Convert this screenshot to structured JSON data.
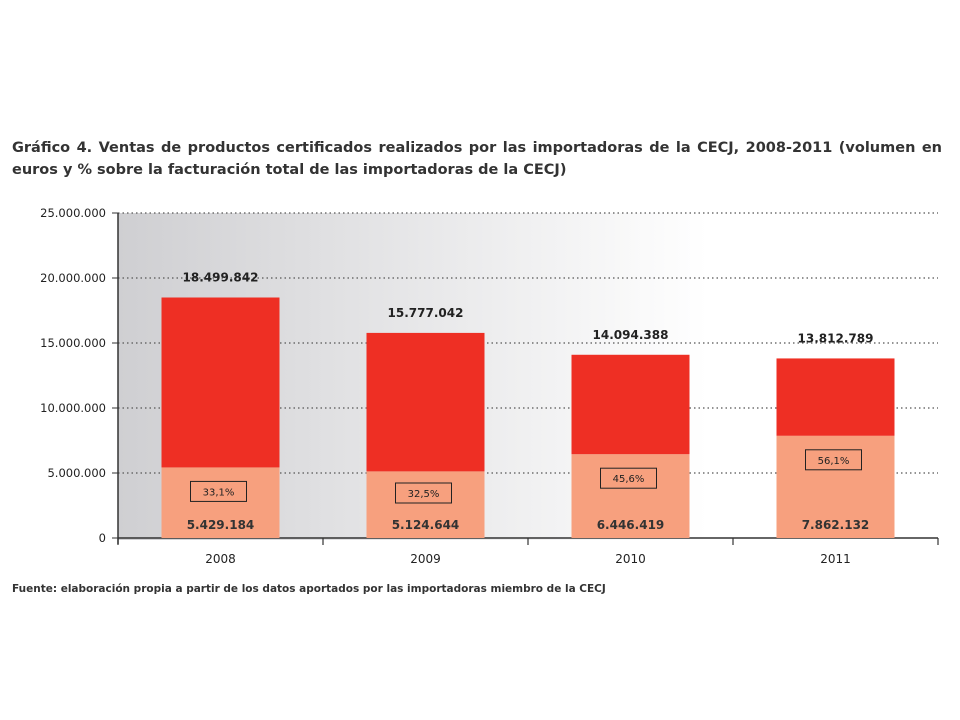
{
  "title": "Gráfico 4. Ventas de productos certificados realizados por las importadoras de la CECJ, 2008-2011 (volumen en euros y % sobre la facturación total de las importadoras de la CECJ)",
  "source": "Fuente: elaboración propia a partir de los datos aportados por las importadoras miembro de la CECJ",
  "colors": {
    "top": "#ee2f24",
    "bottom": "#f7a07e",
    "grid": "#555555"
  },
  "chart_data": {
    "type": "bar",
    "stacked": true,
    "categories": [
      "2008",
      "2009",
      "2010",
      "2011"
    ],
    "series": [
      {
        "values": [
          5429184,
          5124644,
          6446419,
          7862132
        ],
        "labels": [
          "5.429.184",
          "5.124.644",
          "6.446.419",
          "7.862.132"
        ],
        "color": "#f7a07e"
      },
      {
        "values": [
          13070658,
          10652398,
          7647969,
          5950657
        ],
        "color": "#ee2f24"
      }
    ],
    "totals": [
      18499842,
      15777042,
      14094388,
      13812789
    ],
    "total_labels": [
      "18.499.842",
      "15.777.042",
      "14.094.388",
      "13.812.789"
    ],
    "percent_labels": [
      "33,1%",
      "32,5%",
      "45,6%",
      "56,1%"
    ],
    "ylim": [
      0,
      25000000
    ],
    "y_ticks": [
      0,
      5000000,
      10000000,
      15000000,
      20000000,
      25000000
    ],
    "y_tick_labels": [
      "0",
      "5.000.000",
      "10.000.000",
      "15.000.000",
      "20.000.000",
      "25.000.000"
    ],
    "grid": true,
    "grid_style": "dotted"
  }
}
